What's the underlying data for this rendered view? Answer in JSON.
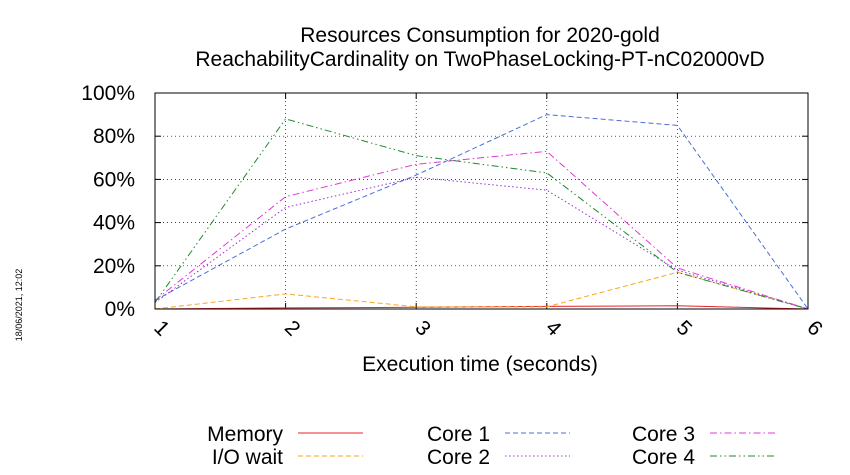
{
  "chart_data": {
    "type": "line",
    "title": "Resources Consumption for 2020-gold",
    "subtitle": "ReachabilityCardinality on TwoPhaseLocking-PT-nC02000vD",
    "xlabel": "Execution time (seconds)",
    "ylabel": "",
    "x": [
      1,
      2,
      3,
      4,
      5,
      6
    ],
    "x_tick_labels": [
      "1",
      "2",
      "3",
      "4",
      "5",
      "6"
    ],
    "xlim": [
      1,
      6
    ],
    "ylim": [
      0,
      100
    ],
    "y_tick_labels": [
      "0%",
      "20%",
      "40%",
      "60%",
      "80%",
      "100%"
    ],
    "y_ticks": [
      0,
      20,
      40,
      60,
      80,
      100
    ],
    "grid": true,
    "legend_position": "bottom",
    "timestamp": "18/06/2021, 12:02",
    "series": [
      {
        "name": "Memory",
        "color": "#e8232a",
        "dash": "solid",
        "values": [
          0,
          0.5,
          0.8,
          1.2,
          1.5,
          0
        ]
      },
      {
        "name": "I/O wait",
        "color": "#f5a623",
        "dash": "dashed",
        "values": [
          0,
          7,
          1,
          1,
          17,
          0
        ]
      },
      {
        "name": "Core 1",
        "color": "#4a6fd8",
        "dash": "dashed",
        "values": [
          4,
          37,
          62,
          90,
          85,
          0
        ]
      },
      {
        "name": "Core 2",
        "color": "#9b30d9",
        "dash": "dotted",
        "values": [
          3,
          47,
          61,
          55,
          18,
          0
        ]
      },
      {
        "name": "Core 3",
        "color": "#e23ad6",
        "dash": "dashdot",
        "values": [
          4,
          52,
          67,
          73,
          19,
          0
        ]
      },
      {
        "name": "Core 4",
        "color": "#1e8a2e",
        "dash": "dashdotdot",
        "values": [
          3,
          88,
          71,
          63,
          17,
          0
        ]
      }
    ]
  }
}
